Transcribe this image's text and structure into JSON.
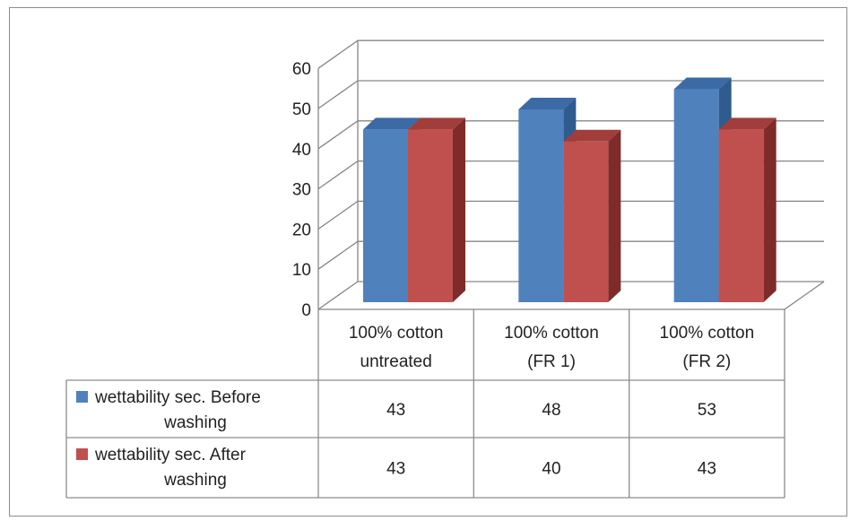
{
  "chart_data": {
    "type": "bar",
    "title": "",
    "xlabel": "",
    "ylabel": "",
    "ylim": [
      0,
      60
    ],
    "yticks": [
      0,
      10,
      20,
      30,
      40,
      50,
      60
    ],
    "grid": true,
    "legend": "data-table",
    "category_lines": [
      [
        "100% cotton",
        "untreated"
      ],
      [
        "100% cotton",
        "(FR 1)"
      ],
      [
        "100% cotton",
        "(FR 2)"
      ]
    ],
    "categories": [
      "100% cotton untreated",
      "100% cotton (FR 1)",
      "100% cotton (FR 2)"
    ],
    "series": [
      {
        "name": "wettability sec. Before washing",
        "name_lines": [
          "wettability sec. Before",
          "washing"
        ],
        "values": [
          43,
          48,
          53
        ],
        "color": "#4f81bd",
        "side_color": "#2f5b8f",
        "top_color": "#3c6aa5"
      },
      {
        "name": "wettability sec. After washing",
        "name_lines": [
          "wettability sec. After",
          "washing"
        ],
        "values": [
          43,
          40,
          43
        ],
        "color": "#c0504d",
        "side_color": "#7e2b29",
        "top_color": "#a13d3a"
      }
    ]
  }
}
